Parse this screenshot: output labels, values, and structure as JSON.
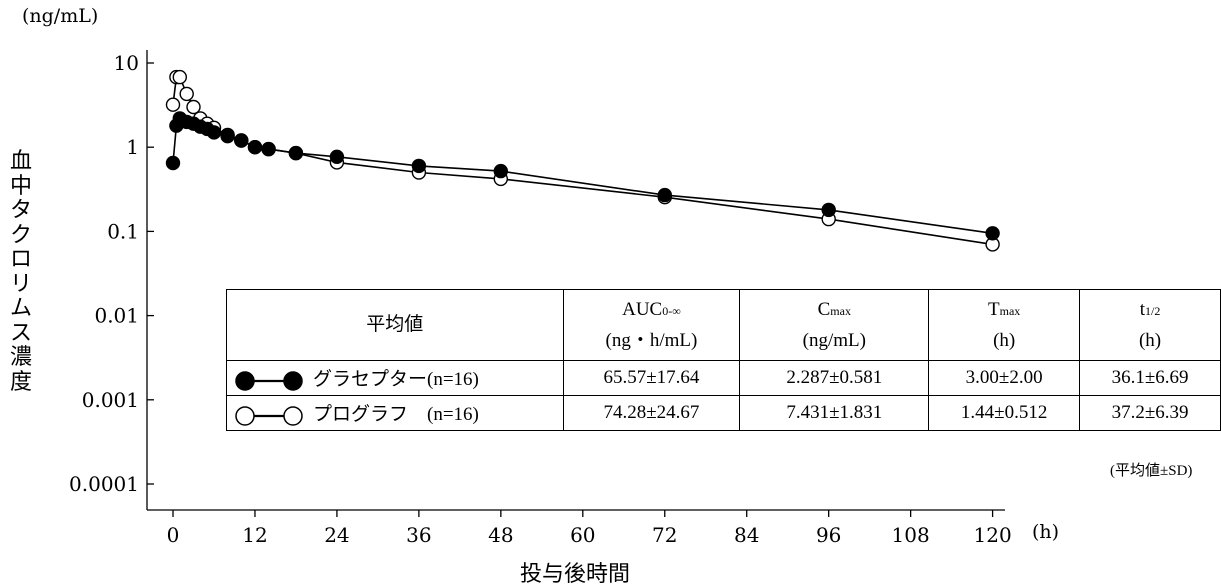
{
  "chart_data": {
    "type": "line",
    "y_scale": "log",
    "y_unit": "(ng/mL)",
    "ylabel": "血中タクロリムス濃度",
    "xlabel": "投与後時間",
    "x_unit": "(h)",
    "x_ticks": [
      "0",
      "12",
      "24",
      "36",
      "48",
      "60",
      "72",
      "84",
      "96",
      "108",
      "120"
    ],
    "y_ticks": [
      "10",
      "1",
      "0.1",
      "0.01",
      "0.001",
      "0.0001"
    ],
    "xlim": [
      -2,
      122
    ],
    "ylim": [
      0.0001,
      10
    ],
    "grid": false,
    "series": [
      {
        "name": "グラセプター(n=16)",
        "marker": "filled-circle",
        "color": "#000000",
        "x": [
          0,
          0.5,
          1,
          2,
          3,
          4,
          5,
          6,
          8,
          10,
          12,
          14,
          18,
          24,
          36,
          48,
          72,
          96,
          120
        ],
        "y": [
          0.65,
          1.8,
          2.2,
          2.0,
          1.9,
          1.75,
          1.65,
          1.5,
          1.35,
          1.2,
          1.0,
          0.95,
          0.85,
          0.77,
          0.6,
          0.52,
          0.27,
          0.18,
          0.095
        ]
      },
      {
        "name": "プログラフ　(n=16)",
        "marker": "open-circle",
        "color": "#000000",
        "x": [
          0,
          0.5,
          1,
          2,
          3,
          4,
          5,
          6,
          8,
          10,
          12,
          14,
          18,
          24,
          36,
          48,
          72,
          96,
          120
        ],
        "y": [
          3.2,
          6.8,
          6.8,
          4.3,
          3.0,
          2.2,
          1.9,
          1.7,
          1.4,
          1.2,
          1.0,
          0.95,
          0.85,
          0.66,
          0.5,
          0.42,
          0.255,
          0.14,
          0.07
        ]
      }
    ],
    "summary_table": {
      "header_label": "平均値",
      "columns": [
        {
          "name": "AUC",
          "sub": "0-∞",
          "unit": "(ng・h/mL)"
        },
        {
          "name": "C",
          "sub": "max",
          "unit": "(ng/mL)"
        },
        {
          "name": "T",
          "sub": "max",
          "unit": "(h)"
        },
        {
          "name": "t",
          "sub": "1/2",
          "unit": "(h)"
        }
      ],
      "rows": [
        {
          "series": "グラセプター(n=16)",
          "values": [
            "65.57±17.64",
            "2.287±0.581",
            "3.00±2.00",
            "36.1±6.69"
          ]
        },
        {
          "series": "プログラフ　(n=16)",
          "values": [
            "74.28±24.67",
            "7.431±1.831",
            "1.44±0.512",
            "37.2±6.39"
          ]
        }
      ],
      "footnote": "(平均値±SD)"
    }
  }
}
